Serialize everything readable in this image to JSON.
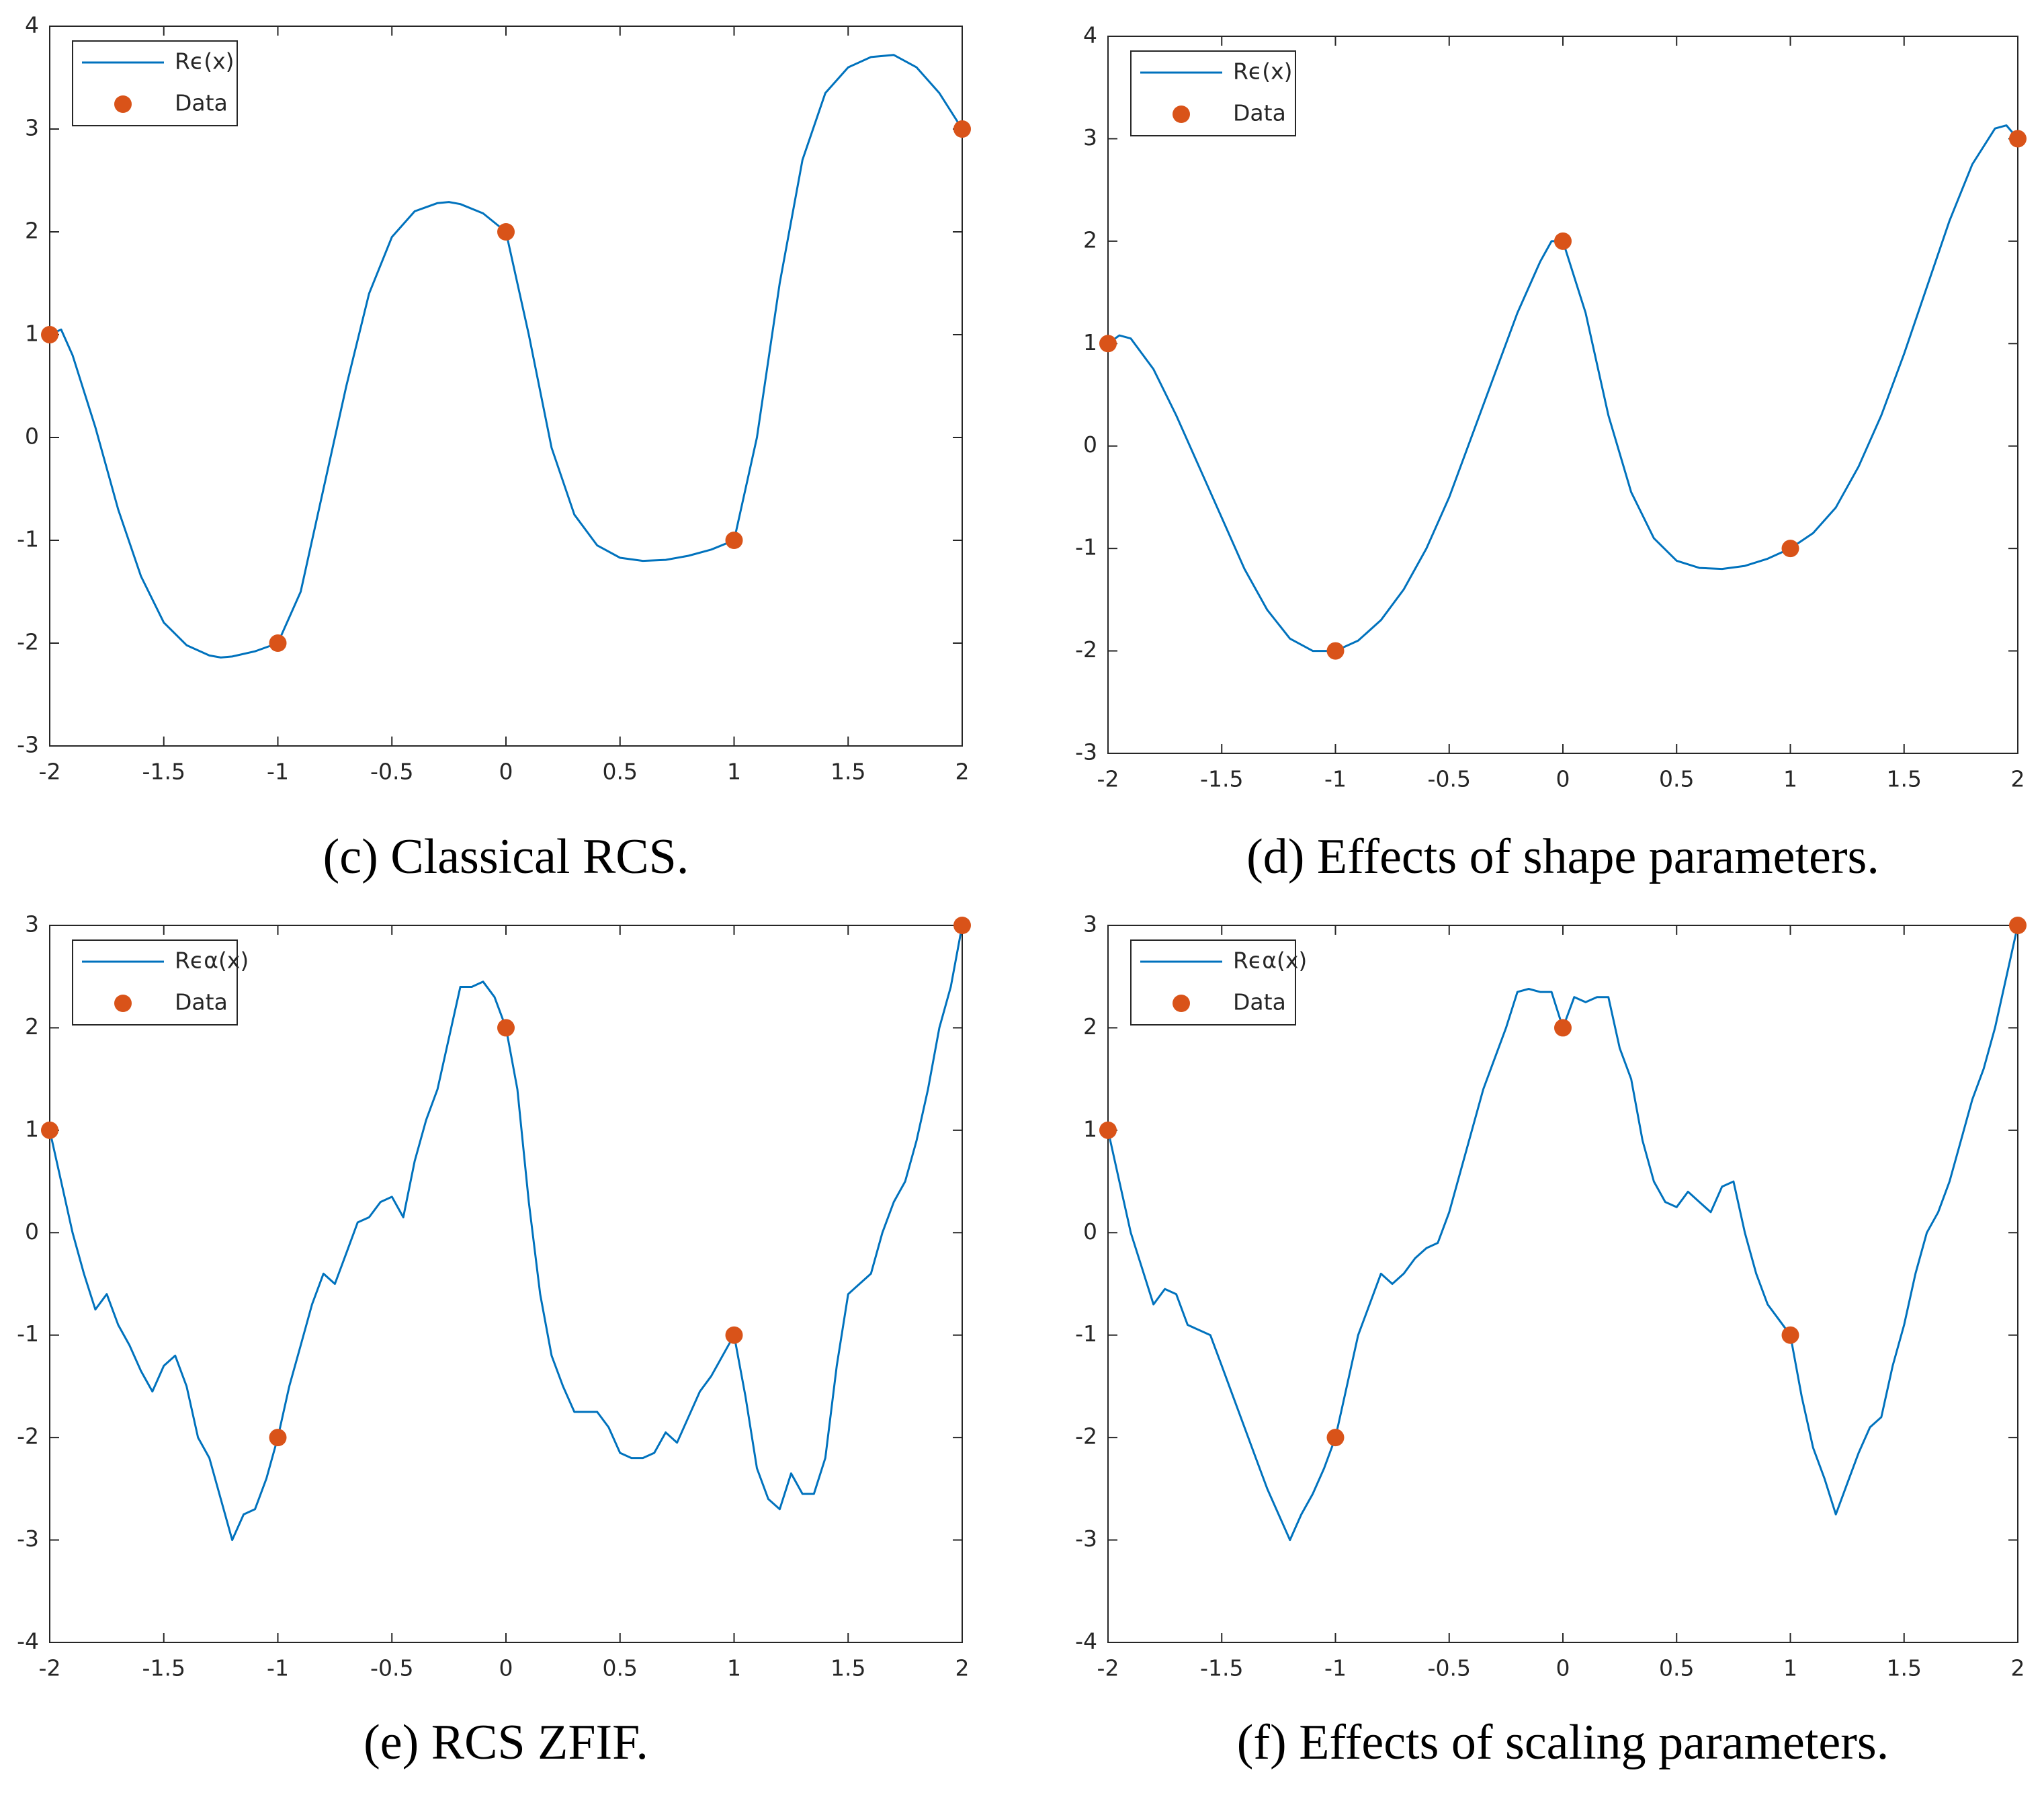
{
  "chart_data": [
    {
      "type": "line",
      "caption": "(c) Classical RCS.",
      "xlim": [
        -2,
        2
      ],
      "xticks": [
        -2,
        -1.5,
        -1,
        -0.5,
        0,
        0.5,
        1,
        1.5,
        2
      ],
      "ylim": [
        -3,
        4
      ],
      "yticks": [
        -3,
        -2,
        -1,
        0,
        1,
        2,
        3,
        4
      ],
      "legend": "upper left",
      "series": [
        {
          "name": "Rϵ(x)",
          "color": "#0072bd",
          "x": [
            -2,
            -1.95,
            -1.9,
            -1.8,
            -1.7,
            -1.6,
            -1.5,
            -1.4,
            -1.3,
            -1.25,
            -1.2,
            -1.1,
            -1,
            -0.9,
            -0.8,
            -0.7,
            -0.6,
            -0.5,
            -0.4,
            -0.3,
            -0.25,
            -0.2,
            -0.1,
            0,
            0.1,
            0.2,
            0.3,
            0.4,
            0.5,
            0.6,
            0.7,
            0.8,
            0.9,
            1,
            1.1,
            1.2,
            1.3,
            1.4,
            1.5,
            1.6,
            1.7,
            1.8,
            1.9,
            2
          ],
          "values": [
            1,
            1.05,
            0.8,
            0.1,
            -0.7,
            -1.35,
            -1.8,
            -2.02,
            -2.12,
            -2.14,
            -2.13,
            -2.08,
            -2,
            -1.5,
            -0.5,
            0.5,
            1.4,
            1.95,
            2.2,
            2.28,
            2.29,
            2.27,
            2.18,
            2,
            1.0,
            -0.1,
            -0.75,
            -1.05,
            -1.17,
            -1.2,
            -1.19,
            -1.15,
            -1.09,
            -1,
            0,
            1.5,
            2.7,
            3.35,
            3.6,
            3.7,
            3.72,
            3.6,
            3.35,
            3
          ]
        },
        {
          "name": "Data",
          "color": "#d95319",
          "marker": "o",
          "x": [
            -2,
            -1,
            0,
            1,
            2
          ],
          "values": [
            1,
            -2,
            2,
            -1,
            3
          ]
        }
      ]
    },
    {
      "type": "line",
      "caption": "(d) Effects of shape parameters.",
      "xlim": [
        -2,
        2
      ],
      "xticks": [
        -2,
        -1.5,
        -1,
        -0.5,
        0,
        0.5,
        1,
        1.5,
        2
      ],
      "ylim": [
        -3,
        4
      ],
      "yticks": [
        -3,
        -2,
        -1,
        0,
        1,
        2,
        3,
        4
      ],
      "legend": "upper left",
      "series": [
        {
          "name": "Rϵ(x)",
          "color": "#0072bd",
          "x": [
            -2,
            -1.95,
            -1.9,
            -1.8,
            -1.7,
            -1.6,
            -1.5,
            -1.4,
            -1.3,
            -1.2,
            -1.1,
            -1,
            -0.9,
            -0.8,
            -0.7,
            -0.6,
            -0.5,
            -0.4,
            -0.3,
            -0.2,
            -0.1,
            -0.05,
            0,
            0.1,
            0.2,
            0.3,
            0.4,
            0.5,
            0.6,
            0.7,
            0.8,
            0.9,
            1,
            1.1,
            1.2,
            1.3,
            1.4,
            1.5,
            1.6,
            1.7,
            1.8,
            1.9,
            1.95,
            2
          ],
          "values": [
            1,
            1.08,
            1.05,
            0.75,
            0.3,
            -0.2,
            -0.7,
            -1.2,
            -1.6,
            -1.88,
            -2.0,
            -2,
            -1.9,
            -1.7,
            -1.4,
            -1.0,
            -0.5,
            0.1,
            0.7,
            1.3,
            1.8,
            2.0,
            2,
            1.3,
            0.3,
            -0.45,
            -0.9,
            -1.12,
            -1.19,
            -1.2,
            -1.17,
            -1.1,
            -1,
            -0.85,
            -0.6,
            -0.2,
            0.3,
            0.9,
            1.55,
            2.2,
            2.75,
            3.1,
            3.13,
            3
          ]
        },
        {
          "name": "Data",
          "color": "#d95319",
          "marker": "o",
          "x": [
            -2,
            -1,
            0,
            1,
            2
          ],
          "values": [
            1,
            -2,
            2,
            -1,
            3
          ]
        }
      ]
    },
    {
      "type": "line",
      "caption": "(e) RCS ZFIF.",
      "xlim": [
        -2,
        2
      ],
      "xticks": [
        -2,
        -1.5,
        -1,
        -0.5,
        0,
        0.5,
        1,
        1.5,
        2
      ],
      "ylim": [
        -4,
        3
      ],
      "yticks": [
        -4,
        -3,
        -2,
        -1,
        0,
        1,
        2,
        3
      ],
      "legend": "upper left",
      "series": [
        {
          "name": "Rϵα(x)",
          "color": "#0072bd",
          "x": [
            -2,
            -1.95,
            -1.9,
            -1.85,
            -1.8,
            -1.75,
            -1.7,
            -1.65,
            -1.6,
            -1.55,
            -1.5,
            -1.45,
            -1.4,
            -1.35,
            -1.3,
            -1.25,
            -1.2,
            -1.15,
            -1.1,
            -1.05,
            -1,
            -0.95,
            -0.9,
            -0.85,
            -0.8,
            -0.75,
            -0.7,
            -0.65,
            -0.6,
            -0.55,
            -0.5,
            -0.45,
            -0.4,
            -0.35,
            -0.3,
            -0.25,
            -0.2,
            -0.15,
            -0.1,
            -0.05,
            0,
            0.05,
            0.1,
            0.15,
            0.2,
            0.25,
            0.3,
            0.35,
            0.4,
            0.45,
            0.5,
            0.55,
            0.6,
            0.65,
            0.7,
            0.75,
            0.8,
            0.85,
            0.9,
            0.95,
            1,
            1.05,
            1.1,
            1.15,
            1.2,
            1.25,
            1.3,
            1.35,
            1.4,
            1.45,
            1.5,
            1.55,
            1.6,
            1.65,
            1.7,
            1.75,
            1.8,
            1.85,
            1.9,
            1.95,
            2
          ],
          "values": [
            1,
            0.5,
            0,
            -0.4,
            -0.75,
            -0.6,
            -0.9,
            -1.1,
            -1.35,
            -1.55,
            -1.3,
            -1.2,
            -1.5,
            -2.0,
            -2.2,
            -2.6,
            -3.0,
            -2.75,
            -2.7,
            -2.4,
            -2,
            -1.5,
            -1.1,
            -0.7,
            -0.4,
            -0.5,
            -0.2,
            0.1,
            0.15,
            0.3,
            0.35,
            0.15,
            0.7,
            1.1,
            1.4,
            1.9,
            2.4,
            2.4,
            2.45,
            2.3,
            2,
            1.4,
            0.3,
            -0.6,
            -1.2,
            -1.5,
            -1.75,
            -1.75,
            -1.75,
            -1.9,
            -2.15,
            -2.2,
            -2.2,
            -2.15,
            -1.95,
            -2.05,
            -1.8,
            -1.55,
            -1.4,
            -1.2,
            -1,
            -1.6,
            -2.3,
            -2.6,
            -2.7,
            -2.35,
            -2.55,
            -2.55,
            -2.2,
            -1.3,
            -0.6,
            -0.5,
            -0.4,
            0,
            0.3,
            0.5,
            0.9,
            1.4,
            2.0,
            2.4,
            3
          ]
        },
        {
          "name": "Data",
          "color": "#d95319",
          "marker": "o",
          "x": [
            -2,
            -1,
            0,
            1,
            2
          ],
          "values": [
            1,
            -2,
            2,
            -1,
            3
          ]
        }
      ]
    },
    {
      "type": "line",
      "caption": "(f) Effects of scaling parameters.",
      "xlim": [
        -2,
        2
      ],
      "xticks": [
        -2,
        -1.5,
        -1,
        -0.5,
        0,
        0.5,
        1,
        1.5,
        2
      ],
      "ylim": [
        -4,
        3
      ],
      "yticks": [
        -4,
        -3,
        -2,
        -1,
        0,
        1,
        2,
        3
      ],
      "legend": "upper left",
      "series": [
        {
          "name": "Rϵα(x)",
          "color": "#0072bd",
          "x": [
            -2,
            -1.95,
            -1.9,
            -1.85,
            -1.8,
            -1.75,
            -1.7,
            -1.65,
            -1.6,
            -1.55,
            -1.5,
            -1.45,
            -1.4,
            -1.35,
            -1.3,
            -1.25,
            -1.2,
            -1.15,
            -1.1,
            -1.05,
            -1,
            -0.95,
            -0.9,
            -0.85,
            -0.8,
            -0.75,
            -0.7,
            -0.65,
            -0.6,
            -0.55,
            -0.5,
            -0.45,
            -0.4,
            -0.35,
            -0.3,
            -0.25,
            -0.2,
            -0.15,
            -0.1,
            -0.05,
            0,
            0.05,
            0.1,
            0.15,
            0.2,
            0.25,
            0.3,
            0.35,
            0.4,
            0.45,
            0.5,
            0.55,
            0.6,
            0.65,
            0.7,
            0.75,
            0.8,
            0.85,
            0.9,
            0.95,
            1,
            1.05,
            1.1,
            1.15,
            1.2,
            1.25,
            1.3,
            1.35,
            1.4,
            1.45,
            1.5,
            1.55,
            1.6,
            1.65,
            1.7,
            1.75,
            1.8,
            1.85,
            1.9,
            1.95,
            2
          ],
          "values": [
            1,
            0.5,
            0,
            -0.35,
            -0.7,
            -0.55,
            -0.6,
            -0.9,
            -0.95,
            -1.0,
            -1.3,
            -1.6,
            -1.9,
            -2.2,
            -2.5,
            -2.75,
            -3.0,
            -2.75,
            -2.55,
            -2.3,
            -2,
            -1.5,
            -1.0,
            -0.7,
            -0.4,
            -0.5,
            -0.4,
            -0.25,
            -0.15,
            -0.1,
            0.2,
            0.6,
            1.0,
            1.4,
            1.7,
            2.0,
            2.35,
            2.38,
            2.35,
            2.35,
            2,
            2.3,
            2.25,
            2.3,
            2.3,
            1.8,
            1.5,
            0.9,
            0.5,
            0.3,
            0.25,
            0.4,
            0.3,
            0.2,
            0.45,
            0.5,
            0,
            -0.4,
            -0.7,
            -0.85,
            -1,
            -1.6,
            -2.1,
            -2.4,
            -2.75,
            -2.45,
            -2.15,
            -1.9,
            -1.8,
            -1.3,
            -0.9,
            -0.4,
            0,
            0.2,
            0.5,
            0.9,
            1.3,
            1.6,
            2.0,
            2.5,
            3
          ]
        },
        {
          "name": "Data",
          "color": "#d95319",
          "marker": "o",
          "x": [
            -2,
            -1,
            0,
            1,
            2
          ],
          "values": [
            1,
            -2,
            2,
            -1,
            3
          ]
        }
      ]
    }
  ]
}
